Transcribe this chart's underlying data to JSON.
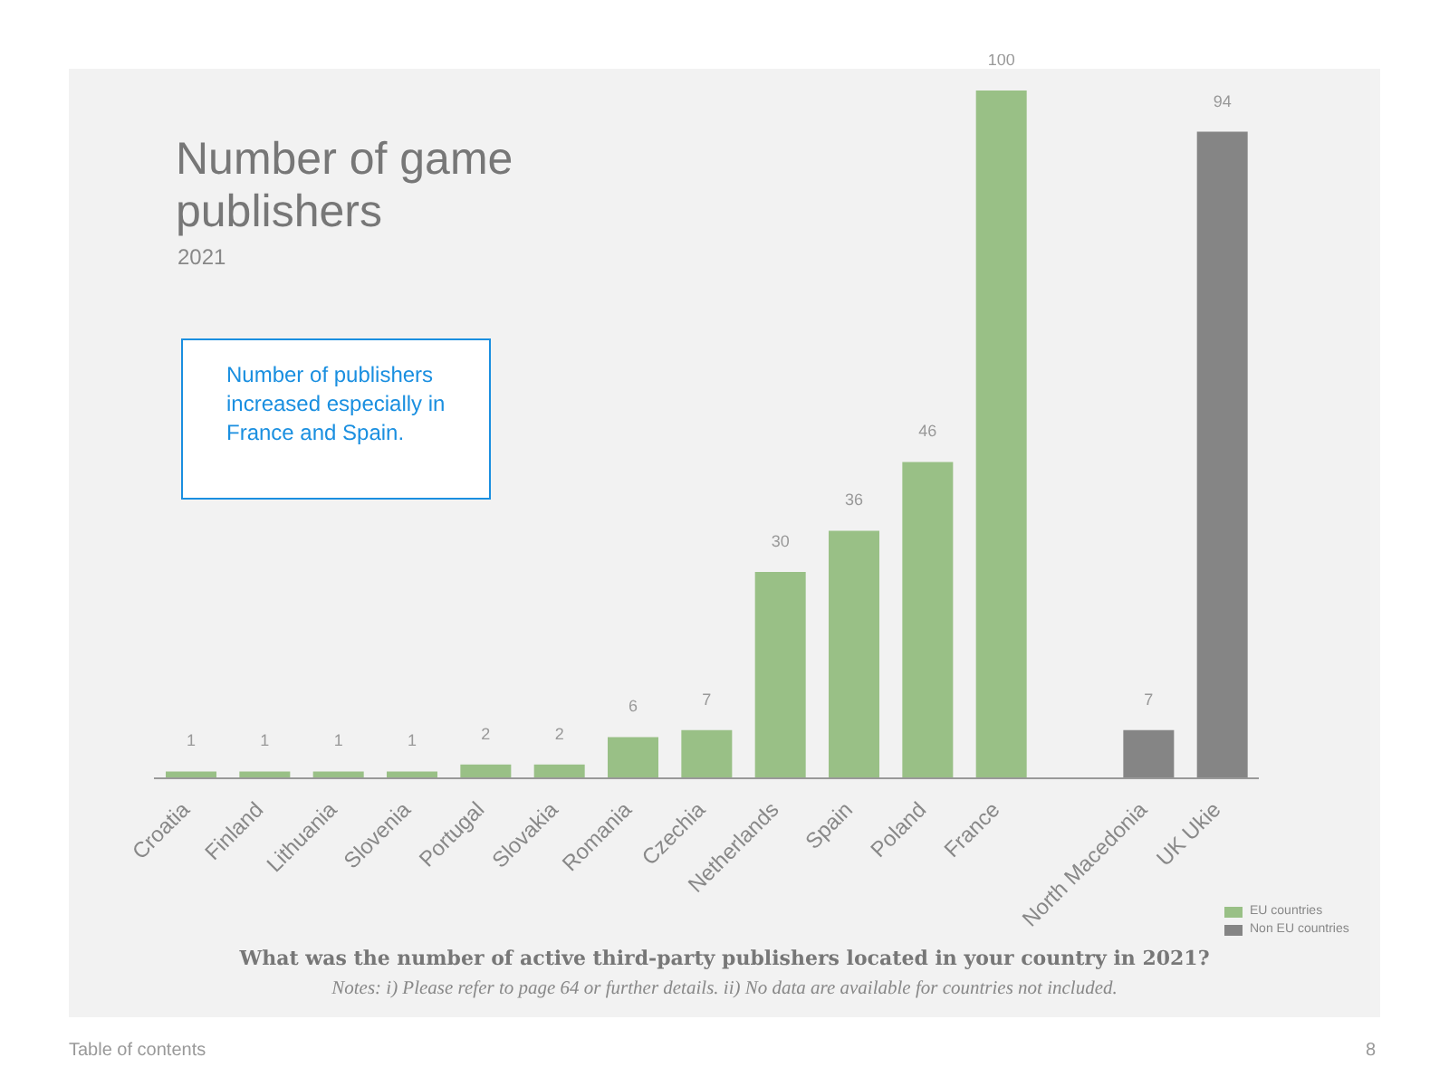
{
  "chart_data": {
    "type": "bar",
    "title": "Number of game publishers",
    "subtitle": "2021",
    "categories": [
      "Croatia",
      "Finland",
      "Lithuania",
      "Slovenia",
      "Portugal",
      "Slovakia",
      "Romania",
      "Czechia",
      "Netherlands",
      "Spain",
      "Poland",
      "France",
      null,
      "North Macedonia",
      "UK Ukie"
    ],
    "series": [
      {
        "name": "EU countries",
        "color": "#99c086",
        "values": [
          1,
          1,
          1,
          1,
          2,
          2,
          6,
          7,
          30,
          36,
          46,
          100,
          null,
          null,
          null
        ]
      },
      {
        "name": "Non EU countries",
        "color": "#858585",
        "values": [
          null,
          null,
          null,
          null,
          null,
          null,
          null,
          null,
          null,
          null,
          null,
          null,
          null,
          7,
          94
        ]
      }
    ],
    "data_labels": true,
    "legend": "bottom right",
    "grid": false,
    "annotations": [
      "Number of publishers increased especially in France and Spain.",
      "What was the number of active third-party publishers located in your country in 2021?",
      "Notes: i) Please refer to page 64 or further details. ii) No data are available for countries not included.",
      "Table of contents",
      "8"
    ]
  }
}
